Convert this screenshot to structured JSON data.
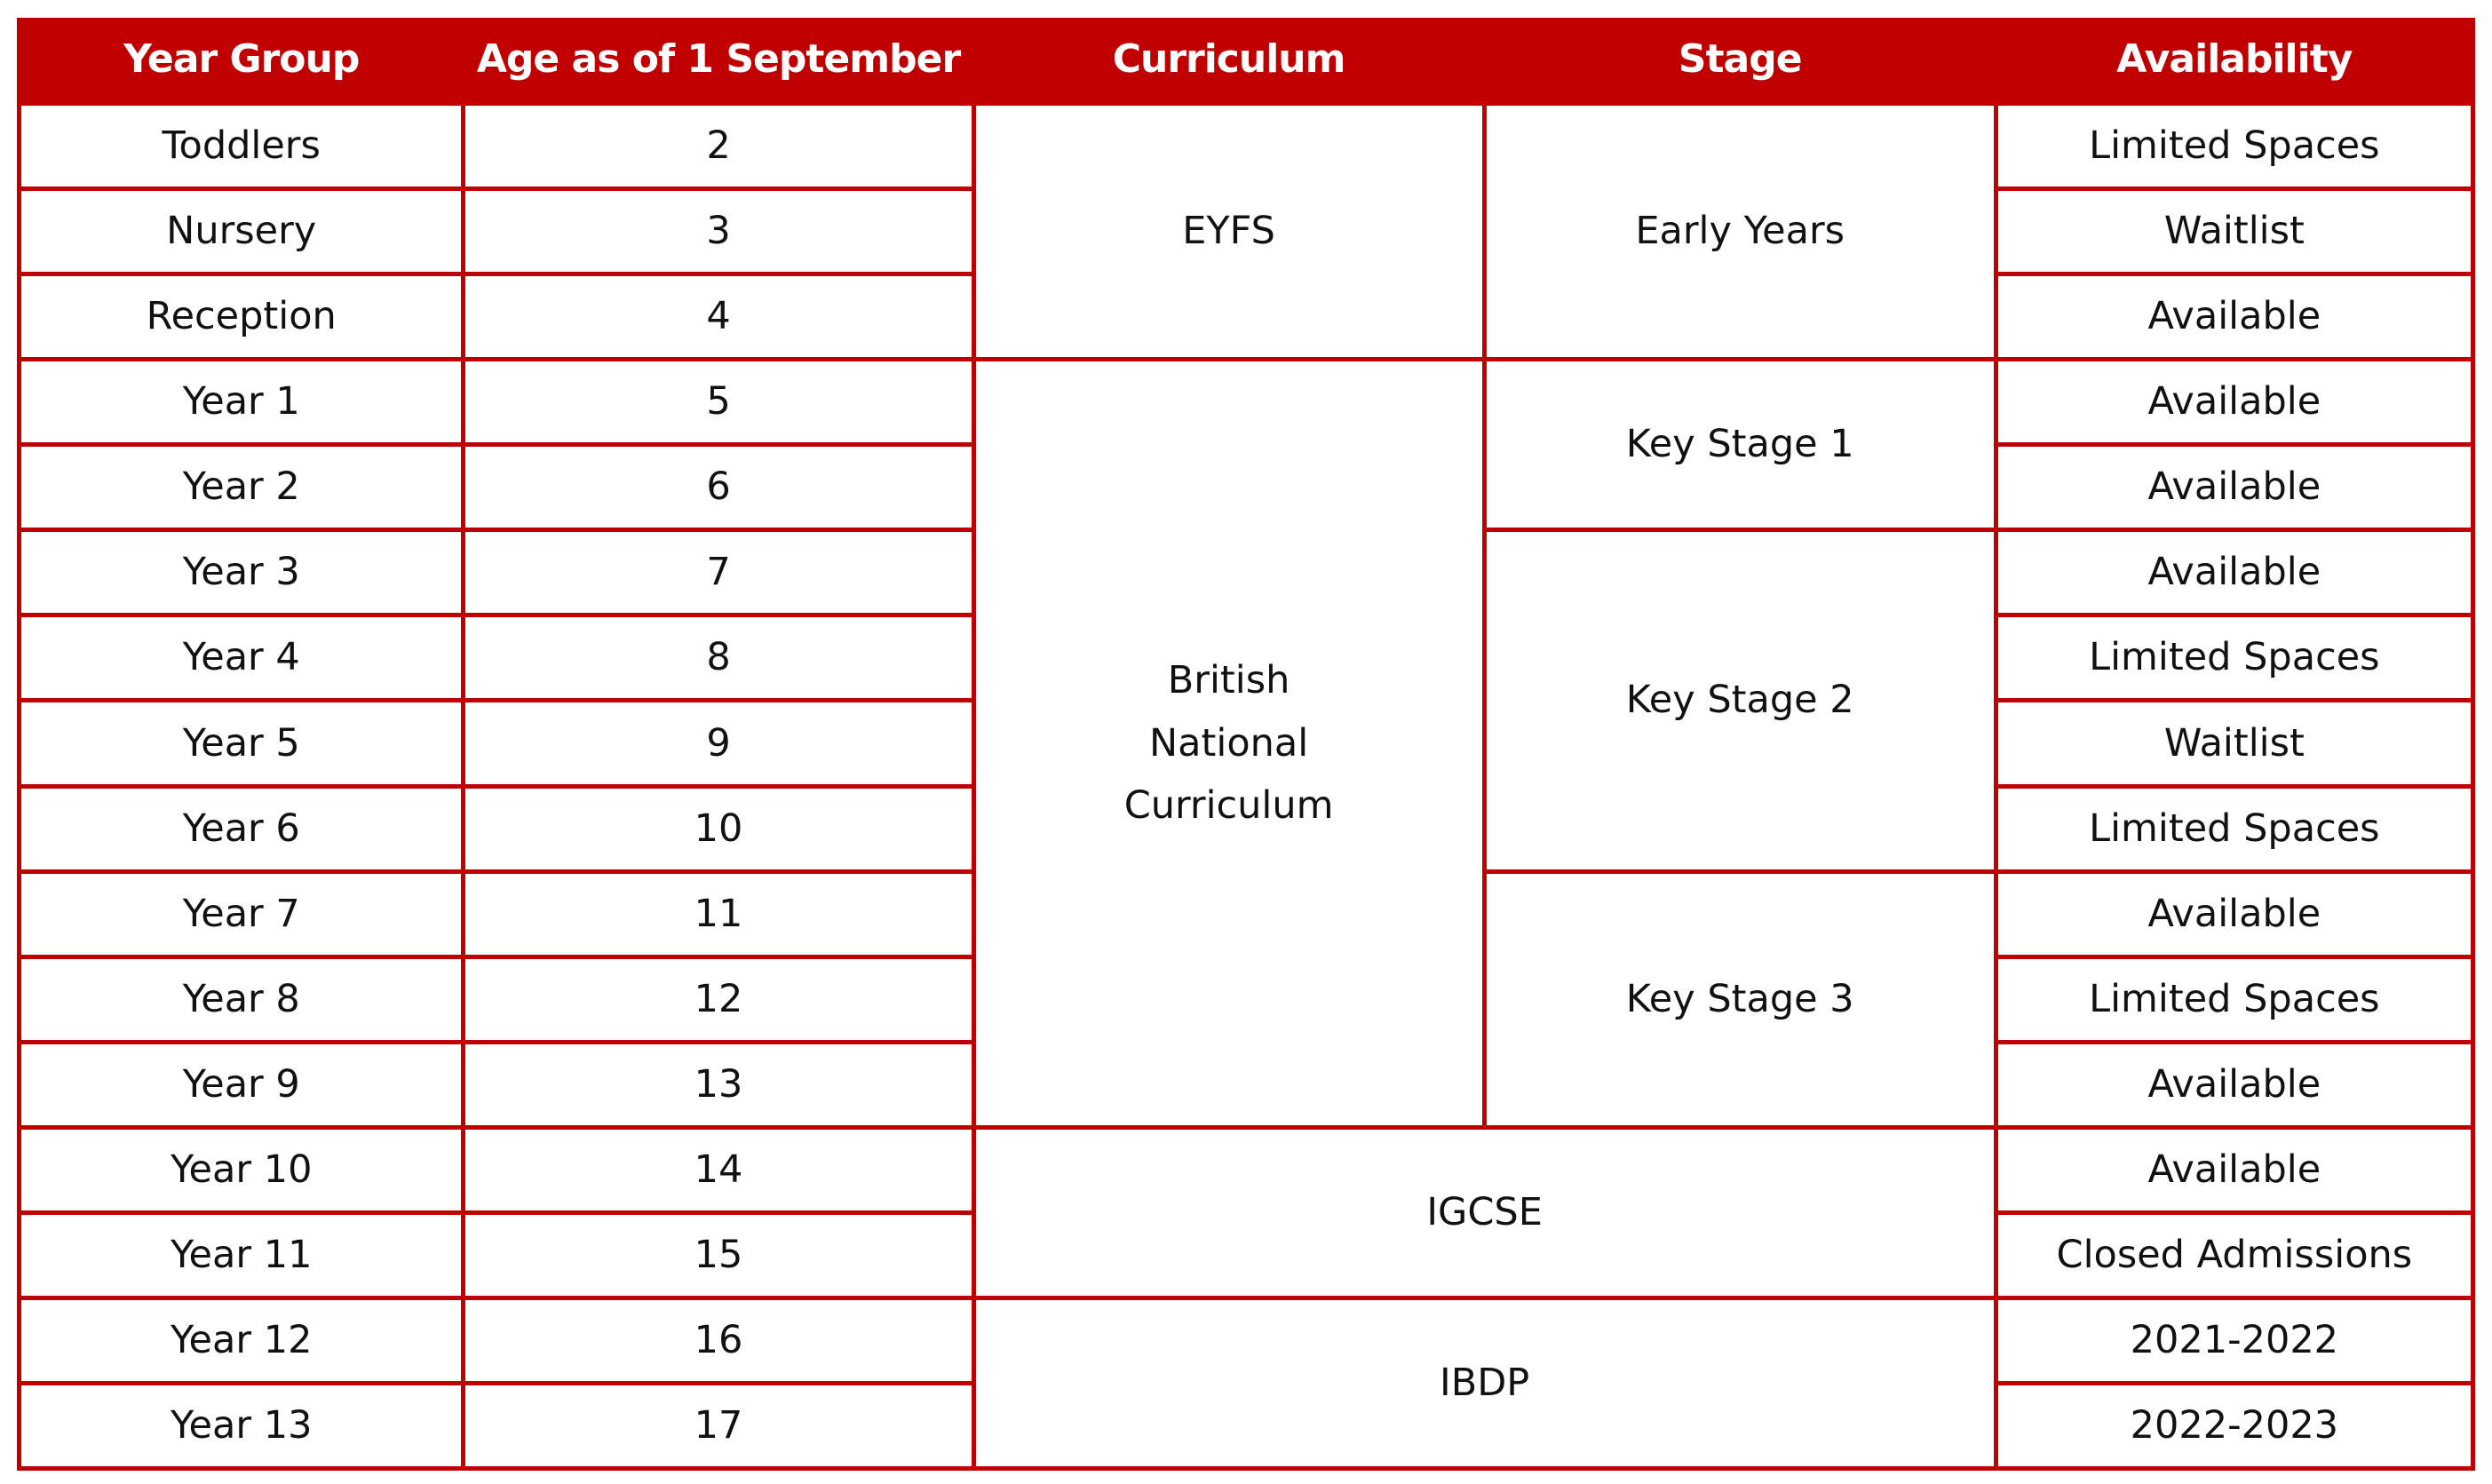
{
  "colors": {
    "accent": "#c00000",
    "text": "#111111",
    "header_text": "#ffffff"
  },
  "headers": [
    "Year Group",
    "Age as of 1 September",
    "Curriculum",
    "Stage",
    "Availability"
  ],
  "rows": [
    {
      "year_group": "Toddlers",
      "age": "2",
      "availability": "Limited Spaces"
    },
    {
      "year_group": "Nursery",
      "age": "3",
      "availability": "Waitlist"
    },
    {
      "year_group": "Reception",
      "age": "4",
      "availability": "Available"
    },
    {
      "year_group": "Year 1",
      "age": "5",
      "availability": "Available"
    },
    {
      "year_group": "Year 2",
      "age": "6",
      "availability": "Available"
    },
    {
      "year_group": "Year 3",
      "age": "7",
      "availability": "Available"
    },
    {
      "year_group": "Year 4",
      "age": "8",
      "availability": "Limited Spaces"
    },
    {
      "year_group": "Year 5",
      "age": "9",
      "availability": "Waitlist"
    },
    {
      "year_group": "Year 6",
      "age": "10",
      "availability": "Limited Spaces"
    },
    {
      "year_group": "Year 7",
      "age": "11",
      "availability": "Available"
    },
    {
      "year_group": "Year 8",
      "age": "12",
      "availability": "Limited Spaces"
    },
    {
      "year_group": "Year 9",
      "age": "13",
      "availability": "Available"
    },
    {
      "year_group": "Year 10",
      "age": "14",
      "availability": "Available"
    },
    {
      "year_group": "Year 11",
      "age": "15",
      "availability": "Closed Admissions"
    },
    {
      "year_group": "Year 12",
      "age": "16",
      "availability": "2021-2022"
    },
    {
      "year_group": "Year 13",
      "age": "17",
      "availability": "2022-2023"
    }
  ],
  "curricula": [
    {
      "label": "EYFS",
      "first_row": 1,
      "last_row": 3,
      "wide": false
    },
    {
      "label": "British National Curriculum",
      "first_row": 4,
      "last_row": 12,
      "wide": false
    },
    {
      "label": "IGCSE",
      "first_row": 13,
      "last_row": 14,
      "wide": true
    },
    {
      "label": "IBDP",
      "first_row": 15,
      "last_row": 16,
      "wide": true
    }
  ],
  "stages": [
    {
      "label": "Early Years",
      "first_row": 1,
      "last_row": 3
    },
    {
      "label": "Key Stage 1",
      "first_row": 4,
      "last_row": 5
    },
    {
      "label": "Key Stage 2",
      "first_row": 6,
      "last_row": 9
    },
    {
      "label": "Key Stage 3",
      "first_row": 10,
      "last_row": 12
    }
  ]
}
